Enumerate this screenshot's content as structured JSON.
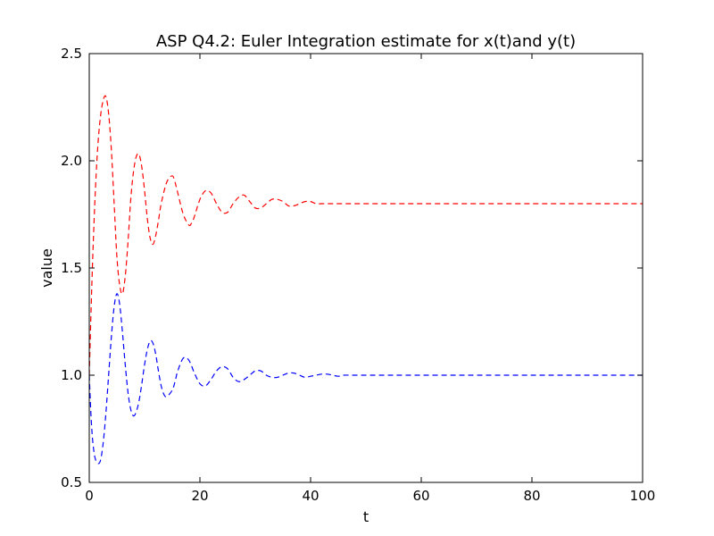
{
  "chart_data": {
    "type": "line",
    "title": "ASP Q4.2: Euler Integration estimate for x(t)and y(t)",
    "xlabel": "t",
    "ylabel": "value",
    "xlim": [
      0,
      100
    ],
    "ylim": [
      0.5,
      2.5
    ],
    "x_ticks": [
      "0",
      "20",
      "40",
      "60",
      "80",
      "100"
    ],
    "y_ticks": [
      "0.5",
      "1.0",
      "1.5",
      "2.0",
      "2.5"
    ],
    "grid": false,
    "legend": "none",
    "series": [
      {
        "color": "#ff0000",
        "line_style": "dashed",
        "x": [
          0,
          0.5,
          1.0,
          1.5,
          2.0,
          2.5,
          3.0,
          3.5,
          4.0,
          4.5,
          5.0,
          5.5,
          6.0,
          6.5,
          7.0,
          7.5,
          8.0,
          8.5,
          9.0,
          9.5,
          10.0,
          10.5,
          11.0,
          11.5,
          12.0,
          12.5,
          13.0,
          14.0,
          15.0,
          15.5,
          16.0,
          17.0,
          18.0,
          18.5,
          19.0,
          20.0,
          21.0,
          22.0,
          23.0,
          24.0,
          25.0,
          26.0,
          27.0,
          28.0,
          29.0,
          30.0,
          31.0,
          32.0,
          33.0,
          34.0,
          35.0,
          36.0,
          37.0,
          38.0,
          39.0,
          40.0,
          41.0,
          42.0,
          43.0,
          44.0,
          45.0,
          46.0,
          47.0,
          48.0,
          49.0,
          50.0,
          52.0,
          54.0,
          56.0,
          58.0,
          60.0,
          65.0,
          70.0,
          80.0,
          90.0,
          100.0
        ],
        "y": [
          1.0,
          1.45,
          1.8,
          2.05,
          2.2,
          2.28,
          2.3,
          2.22,
          2.05,
          1.8,
          1.55,
          1.42,
          1.38,
          1.46,
          1.62,
          1.82,
          1.95,
          2.02,
          2.03,
          1.97,
          1.86,
          1.73,
          1.64,
          1.61,
          1.65,
          1.72,
          1.8,
          1.9,
          1.93,
          1.9,
          1.85,
          1.75,
          1.7,
          1.71,
          1.74,
          1.82,
          1.86,
          1.85,
          1.8,
          1.76,
          1.76,
          1.8,
          1.83,
          1.84,
          1.81,
          1.78,
          1.78,
          1.8,
          1.82,
          1.82,
          1.81,
          1.79,
          1.79,
          1.8,
          1.81,
          1.81,
          1.8,
          1.8,
          1.8,
          1.8,
          1.8,
          1.8,
          1.8,
          1.8,
          1.8,
          1.8,
          1.8,
          1.8,
          1.8,
          1.8,
          1.8,
          1.8,
          1.8,
          1.8,
          1.8,
          1.8
        ]
      },
      {
        "color": "#0000ff",
        "line_style": "dashed",
        "x": [
          0,
          0.3,
          0.6,
          1.0,
          1.5,
          2.0,
          2.5,
          3.0,
          3.5,
          4.0,
          4.5,
          5.0,
          5.5,
          6.0,
          6.5,
          7.0,
          7.5,
          8.0,
          8.5,
          9.0,
          9.5,
          10.0,
          10.5,
          11.0,
          11.5,
          12.0,
          12.5,
          13.0,
          13.5,
          14.0,
          15.0,
          15.5,
          16.0,
          17.0,
          18.0,
          19.0,
          20.0,
          21.0,
          22.0,
          23.0,
          24.0,
          25.0,
          26.0,
          27.0,
          28.0,
          29.0,
          30.0,
          31.0,
          32.0,
          33.0,
          34.0,
          35.0,
          36.0,
          37.0,
          38.0,
          39.0,
          40.0,
          41.0,
          42.0,
          43.0,
          44.0,
          45.0,
          46.0,
          47.0,
          48.0,
          50.0,
          52.0,
          54.0,
          56.0,
          60.0,
          65.0,
          70.0,
          80.0,
          90.0,
          100.0
        ],
        "y": [
          1.0,
          0.82,
          0.7,
          0.62,
          0.59,
          0.6,
          0.68,
          0.82,
          1.0,
          1.18,
          1.32,
          1.38,
          1.33,
          1.2,
          1.05,
          0.92,
          0.84,
          0.81,
          0.83,
          0.88,
          0.96,
          1.05,
          1.12,
          1.16,
          1.15,
          1.1,
          1.02,
          0.95,
          0.91,
          0.9,
          0.93,
          0.97,
          1.02,
          1.08,
          1.07,
          1.01,
          0.96,
          0.95,
          0.98,
          1.02,
          1.04,
          1.03,
          0.99,
          0.97,
          0.98,
          1.0,
          1.02,
          1.02,
          1.0,
          0.99,
          0.99,
          1.0,
          1.01,
          1.01,
          1.0,
          0.99,
          0.995,
          1.0,
          1.005,
          1.005,
          1.0,
          0.995,
          1.0,
          1.0,
          1.0,
          1.0,
          1.0,
          1.0,
          1.0,
          1.0,
          1.0,
          1.0,
          1.0,
          1.0,
          1.0
        ]
      }
    ]
  }
}
